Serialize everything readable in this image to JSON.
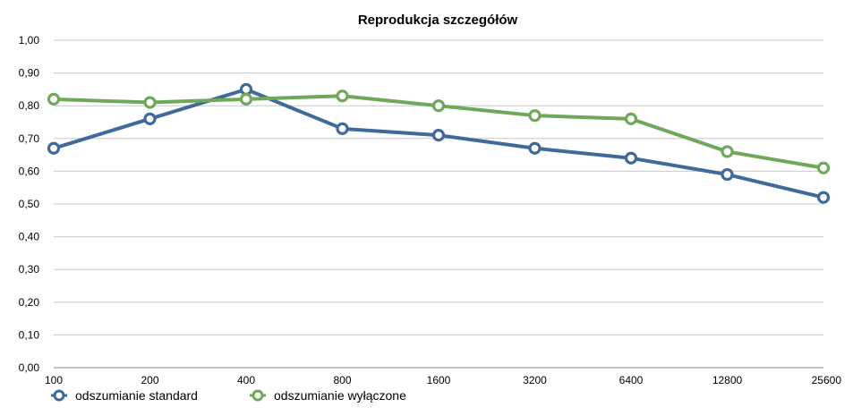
{
  "chart_data": {
    "type": "line",
    "title": "Reprodukcja szczegółów",
    "xlabel": "",
    "ylabel": "",
    "categories": [
      "100",
      "200",
      "400",
      "800",
      "1600",
      "3200",
      "6400",
      "12800",
      "25600"
    ],
    "y_ticks": [
      "0,00",
      "0,10",
      "0,20",
      "0,30",
      "0,40",
      "0,50",
      "0,60",
      "0,70",
      "0,80",
      "0,90",
      "1,00"
    ],
    "ylim": [
      0,
      1
    ],
    "grid": true,
    "legend_position": "bottom-left",
    "series": [
      {
        "name": "odszumianie standard",
        "color": "#3f6a9a",
        "values": [
          0.67,
          0.76,
          0.85,
          0.73,
          0.71,
          0.67,
          0.64,
          0.59,
          0.52
        ]
      },
      {
        "name": "odszumianie wyłączone",
        "color": "#6fa85b",
        "values": [
          0.82,
          0.81,
          0.82,
          0.83,
          0.8,
          0.77,
          0.76,
          0.66,
          0.61
        ]
      }
    ]
  }
}
